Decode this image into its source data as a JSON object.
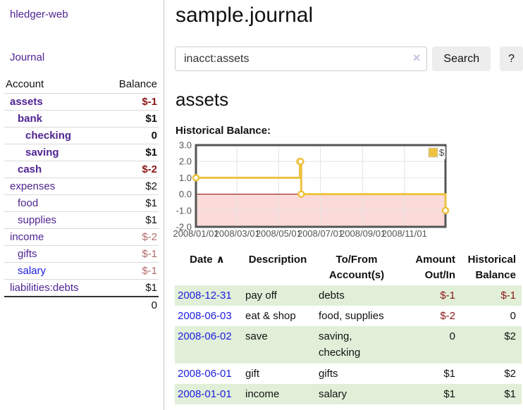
{
  "brand": "hledger-web",
  "nav": {
    "journal": "Journal"
  },
  "sidebar": {
    "columns": {
      "account": "Account",
      "balance": "Balance"
    },
    "accounts": [
      {
        "name": "assets",
        "indent": 0,
        "strong": true,
        "balance": "$-1",
        "bclass": "neg"
      },
      {
        "name": "bank",
        "indent": 1,
        "strong": true,
        "balance": "$1",
        "bclass": "pos"
      },
      {
        "name": "checking",
        "indent": 2,
        "strong": true,
        "balance": "0",
        "bclass": "pos"
      },
      {
        "name": "saving",
        "indent": 2,
        "strong": true,
        "balance": "$1",
        "bclass": "pos"
      },
      {
        "name": "cash",
        "indent": 1,
        "strong": true,
        "balance": "$-2",
        "bclass": "neg"
      },
      {
        "name": "expenses",
        "indent": 0,
        "strong": false,
        "balance": "$2",
        "bclass": "pos"
      },
      {
        "name": "food",
        "indent": 1,
        "strong": false,
        "balance": "$1",
        "bclass": "pos"
      },
      {
        "name": "supplies",
        "indent": 1,
        "strong": false,
        "balance": "$1",
        "bclass": "pos"
      },
      {
        "name": "income",
        "indent": 0,
        "strong": false,
        "balance": "$-2",
        "bclass": "negsoft"
      },
      {
        "name": "gifts",
        "indent": 1,
        "strong": false,
        "balance": "$-1",
        "bclass": "negsoft"
      },
      {
        "name": "salary",
        "indent": 1,
        "strong": false,
        "balance": "$-1",
        "bclass": "negsoft",
        "blue": true
      },
      {
        "name": "liabilities:debts",
        "indent": 0,
        "strong": false,
        "balance": "$1",
        "bclass": "pos"
      }
    ],
    "total": "0"
  },
  "page": {
    "title": "sample.journal",
    "account_heading": "assets",
    "chart_label": "Historical Balance:"
  },
  "search": {
    "value": "inacct:assets",
    "clear_icon": "×",
    "search_button": "Search",
    "help_button": "?"
  },
  "chart_data": {
    "type": "line",
    "step": true,
    "title": "Historical Balance",
    "x_type": "date",
    "xlim": [
      "2008-01-01",
      "2008-12-31"
    ],
    "ylim": [
      -2,
      3
    ],
    "x_ticks": [
      "2008-01-01",
      "2008-03-01",
      "2008-05-01",
      "2008-07-01",
      "2008-09-01",
      "2008-11-01"
    ],
    "y_ticks": [
      3,
      2,
      1,
      0,
      -1,
      -2
    ],
    "grid": true,
    "legend_position": "top-right",
    "series": [
      {
        "name": "$",
        "color": "#EDC240",
        "points": [
          [
            "2008-01-01",
            1
          ],
          [
            "2008-06-01",
            2
          ],
          [
            "2008-06-02",
            2
          ],
          [
            "2008-06-03",
            0
          ],
          [
            "2008-12-31",
            -1
          ]
        ]
      }
    ],
    "negative_region_color": "#fcdada",
    "zero_line_color": "#8b0000",
    "border_color": "#545454",
    "grid_color": "#e4e4e4",
    "tick_label_color": "#545454"
  },
  "register": {
    "sort_icon": "∧",
    "columns": [
      {
        "label": "Date",
        "align": "left",
        "sortable": true
      },
      {
        "label": "Description",
        "align": "left"
      },
      {
        "label": "To/From\nAccount(s)",
        "align": "left"
      },
      {
        "label": "Amount\nOut/In",
        "align": "right"
      },
      {
        "label": "Historical\nBalance",
        "align": "right"
      }
    ],
    "rows": [
      {
        "date": "2008-12-31",
        "description": "pay off",
        "accounts": "debts",
        "amount": "$-1",
        "balance": "$-1"
      },
      {
        "date": "2008-06-03",
        "description": "eat & shop",
        "accounts": "food, supplies",
        "amount": "$-2",
        "balance": "0"
      },
      {
        "date": "2008-06-02",
        "description": "save",
        "accounts": "saving, checking",
        "amount": "0",
        "balance": "$2"
      },
      {
        "date": "2008-06-01",
        "description": "gift",
        "accounts": "gifts",
        "amount": "$1",
        "balance": "$2"
      },
      {
        "date": "2008-01-01",
        "description": "income",
        "accounts": "salary",
        "amount": "$1",
        "balance": "$1"
      }
    ]
  }
}
